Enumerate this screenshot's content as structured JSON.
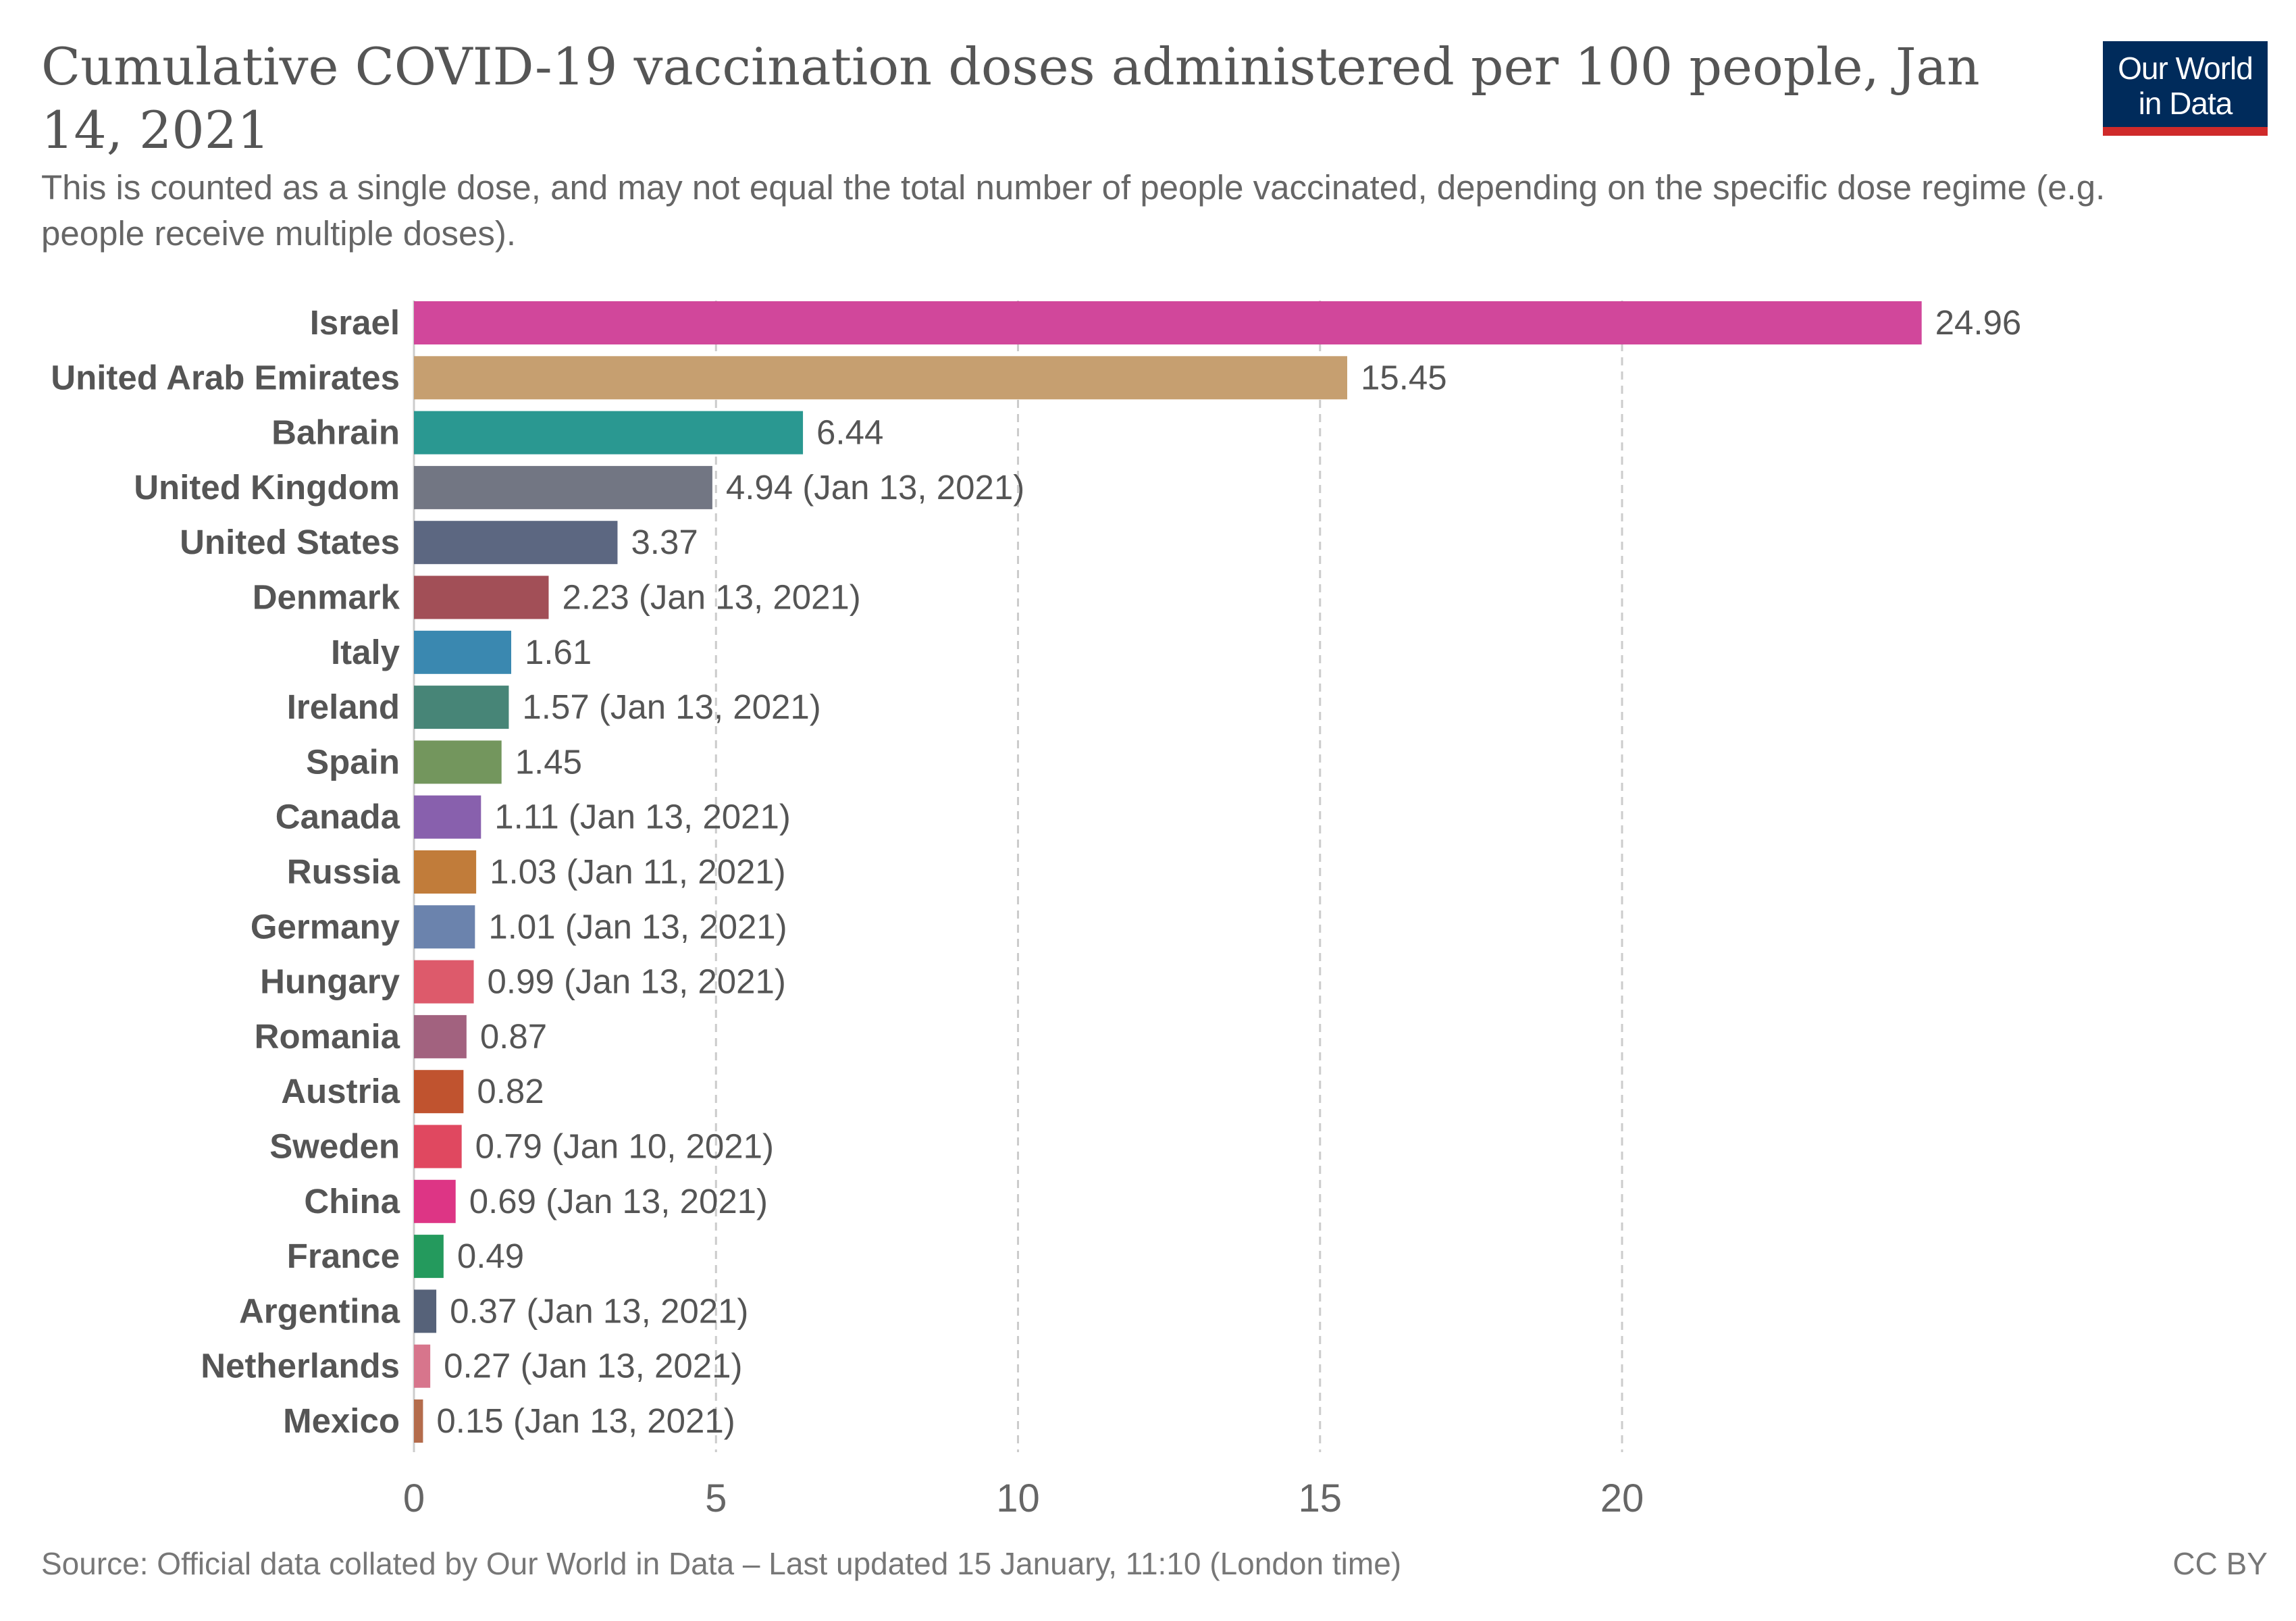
{
  "header": {
    "title": "Cumulative COVID-19 vaccination doses administered per 100 people, Jan 14, 2021",
    "subtitle": "This is counted as a single dose, and may not equal the total number of people vaccinated, depending on the specific dose regime (e.g. people receive multiple doses).",
    "logo_line1": "Our World",
    "logo_line2": "in Data"
  },
  "footer": {
    "source": "Source: Official data collated by Our World in Data – Last updated 15 January, 11:10 (London time)",
    "license": "CC BY"
  },
  "chart_data": {
    "type": "bar",
    "orientation": "horizontal",
    "xlim": [
      0,
      25
    ],
    "xticks": [
      0,
      5,
      10,
      15,
      20
    ],
    "grid": "vertical dashed",
    "categories": [
      "Israel",
      "United Arab Emirates",
      "Bahrain",
      "United Kingdom",
      "United States",
      "Denmark",
      "Italy",
      "Ireland",
      "Spain",
      "Canada",
      "Russia",
      "Germany",
      "Hungary",
      "Romania",
      "Austria",
      "Sweden",
      "China",
      "France",
      "Argentina",
      "Netherlands",
      "Mexico"
    ],
    "values": [
      24.96,
      15.45,
      6.44,
      4.94,
      3.37,
      2.23,
      1.61,
      1.57,
      1.45,
      1.11,
      1.03,
      1.01,
      0.99,
      0.87,
      0.82,
      0.79,
      0.69,
      0.49,
      0.37,
      0.27,
      0.15
    ],
    "labels": [
      "24.96",
      "15.45",
      "6.44",
      "4.94 (Jan 13, 2021)",
      "3.37",
      "2.23 (Jan 13, 2021)",
      "1.61",
      "1.57 (Jan 13, 2021)",
      "1.45",
      "1.11 (Jan 13, 2021)",
      "1.03 (Jan 11, 2021)",
      "1.01 (Jan 13, 2021)",
      "0.99 (Jan 13, 2021)",
      "0.87",
      "0.82",
      "0.79 (Jan 10, 2021)",
      "0.69 (Jan 13, 2021)",
      "0.49",
      "0.37 (Jan 13, 2021)",
      "0.27 (Jan 13, 2021)",
      "0.15 (Jan 13, 2021)"
    ],
    "colors": [
      "#d1479b",
      "#c69f70",
      "#2a9891",
      "#727683",
      "#5c6781",
      "#a24f57",
      "#3a88b0",
      "#478577",
      "#73965d",
      "#8860ad",
      "#c17c3a",
      "#6b83ad",
      "#dd5a6b",
      "#a2627f",
      "#c0532f",
      "#e04860",
      "#dd3585",
      "#249a5d",
      "#566279",
      "#d7758c",
      "#b46c4c"
    ]
  }
}
